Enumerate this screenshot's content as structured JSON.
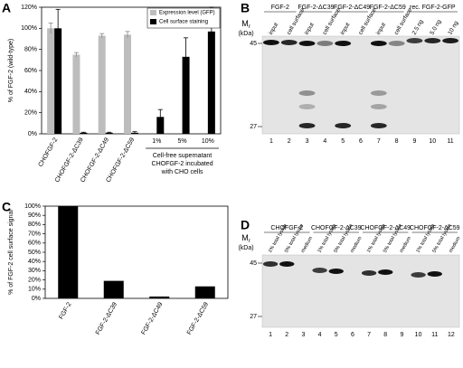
{
  "chart_data": [
    {
      "type": "bar",
      "panel": "A",
      "ylabel": "% of FGF-2 (wild-type)",
      "categories": [
        "CHOFGF-2",
        "CHOFGF-2-ΔC39",
        "CHOFGF-2-ΔC49",
        "CHOFGF-2-ΔC59",
        "1%",
        "5%",
        "10%"
      ],
      "series": [
        {
          "name": "Expression level (GFP)",
          "color": "#bdbdbd",
          "values": [
            100,
            75,
            93,
            94,
            null,
            null,
            null
          ],
          "errors": [
            5,
            2,
            2,
            3,
            null,
            null,
            null
          ]
        },
        {
          "name": "Cell surface staining",
          "color": "#000000",
          "values": [
            100,
            1,
            1,
            1,
            16,
            73,
            97
          ],
          "errors": [
            18,
            0.5,
            0.5,
            1,
            7,
            18,
            23
          ]
        }
      ],
      "ylim": [
        0,
        120
      ],
      "yticks": [
        {
          "value": 0,
          "label": "0%"
        },
        {
          "value": 20,
          "label": "20%"
        },
        {
          "value": 40,
          "label": "40%"
        },
        {
          "value": 60,
          "label": "60%"
        },
        {
          "value": 80,
          "label": "80%"
        },
        {
          "value": 100,
          "label": "100%"
        },
        {
          "value": 120,
          "label": "120%"
        }
      ],
      "legend": "top-right",
      "annotation": [
        "Cell-free supernatant",
        "CHOFGF-2 incubated",
        "with CHO cells"
      ]
    },
    {
      "type": "bar",
      "panel": "C",
      "ylabel": "% of FGF-2 cell surface signal",
      "categories": [
        "FGF-2",
        "FGF-2-ΔC39",
        "FGF-2-ΔC49",
        "FGF-2-ΔC59"
      ],
      "values": [
        100,
        19,
        2,
        13
      ],
      "color": "#000000",
      "ylim": [
        0,
        100
      ],
      "yticks": [
        {
          "value": 0,
          "label": "0%"
        },
        {
          "value": 10,
          "label": "10%"
        },
        {
          "value": 20,
          "label": "20%"
        },
        {
          "value": 30,
          "label": "30%"
        },
        {
          "value": 40,
          "label": "40%"
        },
        {
          "value": 50,
          "label": "50%"
        },
        {
          "value": 60,
          "label": "60%"
        },
        {
          "value": 70,
          "label": "70%"
        },
        {
          "value": 80,
          "label": "80%"
        },
        {
          "value": 90,
          "label": "90%"
        },
        {
          "value": 100,
          "label": "100%"
        }
      ]
    }
  ],
  "blots": [
    {
      "panel": "B",
      "mr": "M",
      "mr_sub": "r",
      "unit": "(kDa)",
      "markers": [
        45,
        27
      ],
      "groups": [
        {
          "name": "FGF-2",
          "lanes": [
            "input",
            "cell surface"
          ]
        },
        {
          "name": "FGF-2-ΔC39",
          "lanes": [
            "input",
            "cell surface"
          ]
        },
        {
          "name": "FGF-2-ΔC49",
          "lanes": [
            "input",
            "cell surface"
          ]
        },
        {
          "name": "FGF-2-ΔC59",
          "lanes": [
            "input",
            "cell surface"
          ]
        },
        {
          "name": "rec. FGF-2-GFP",
          "lanes": [
            "2.5 ng",
            "5.0 ng",
            "10 ng"
          ]
        }
      ],
      "lane_numbers": [
        1,
        2,
        3,
        4,
        5,
        6,
        7,
        8,
        9,
        10,
        11
      ]
    },
    {
      "panel": "D",
      "mr": "M",
      "mr_sub": "r",
      "unit": "(kDa)",
      "markers": [
        45,
        27
      ],
      "groups": [
        {
          "name": "CHOFGF-2",
          "lanes": [
            "1% total lysate",
            "5% total lysate",
            "medium"
          ]
        },
        {
          "name": "CHOFGF-2-ΔC39",
          "lanes": [
            "1% total lysate",
            "5% total lysate",
            "medium"
          ]
        },
        {
          "name": "CHOFGF-2-ΔC49",
          "lanes": [
            "1% total lysate",
            "5% total lysate",
            "medium"
          ]
        },
        {
          "name": "CHOFGF-2-ΔC59",
          "lanes": [
            "1% total lysate",
            "5% total lysate",
            "medium"
          ]
        }
      ],
      "lane_numbers": [
        1,
        2,
        3,
        4,
        5,
        6,
        7,
        8,
        9,
        10,
        11,
        12
      ]
    }
  ]
}
